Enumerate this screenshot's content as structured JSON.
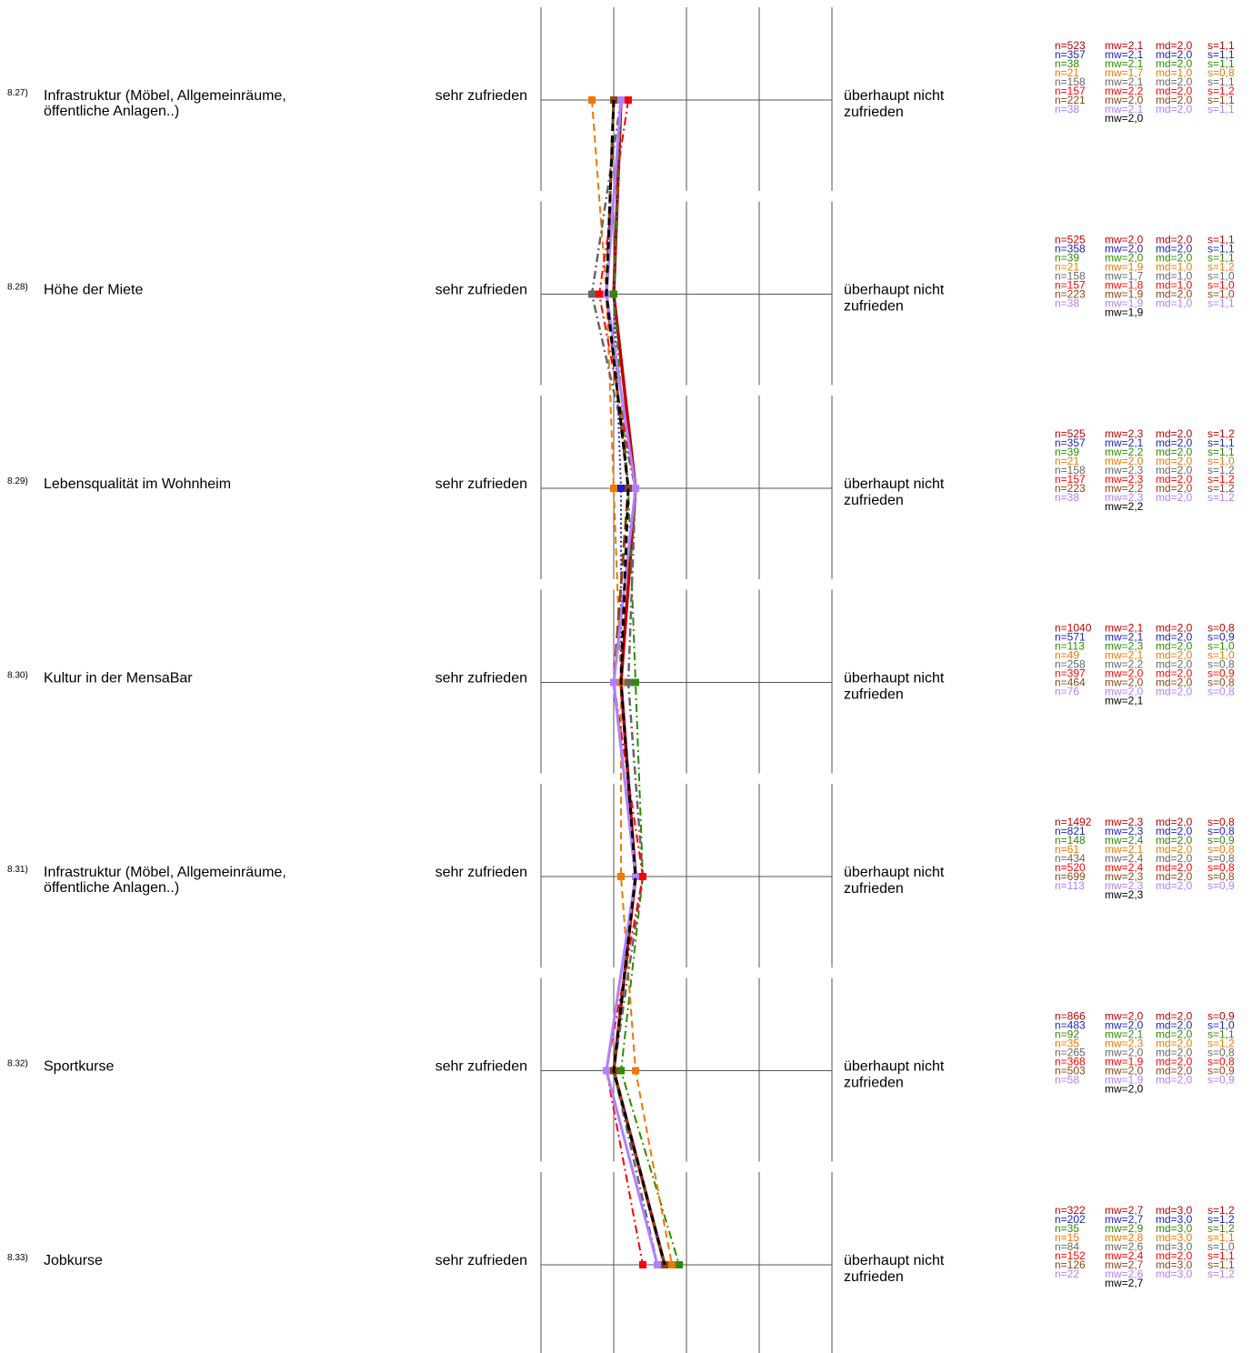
{
  "chart_data": {
    "type": "line",
    "scale_points": 5,
    "left_pole": "sehr zufrieden",
    "right_pole": "überhaupt nicht zufrieden",
    "series": [
      {
        "group": 0,
        "color": "#c00000",
        "dash": "solid",
        "width": 3.5
      },
      {
        "group": 1,
        "color": "#2020c0",
        "dash": "dot",
        "width": 2
      },
      {
        "group": 2,
        "color": "#2e8b00",
        "dash": "dashdot",
        "width": 2
      },
      {
        "group": 3,
        "color": "#f07800",
        "dash": "dash",
        "width": 2
      },
      {
        "group": 4,
        "color": "#666666",
        "dash": "dashdot",
        "width": 2.5
      },
      {
        "group": 5,
        "color": "#ff0000",
        "dash": "dashdot",
        "width": 2
      },
      {
        "group": 6,
        "color": "#8b4513",
        "dash": "longdash",
        "width": 3
      },
      {
        "group": 7,
        "color": "#b080ff",
        "dash": "solid",
        "width": 3
      },
      {
        "group": 8,
        "color": "#000000",
        "dash": "dash",
        "width": 3
      }
    ],
    "items": [
      {
        "num": "8.27)",
        "label": [
          "Infrastruktur (Möbel, Allgemeinräume,",
          "öffentliche Anlagen..)"
        ],
        "means": [
          2.1,
          2.1,
          2.1,
          1.7,
          2.1,
          2.2,
          2.0,
          2.1,
          2.0
        ],
        "stats": [
          {
            "n": "n=523",
            "mw": "mw=2,1",
            "md": "md=2,0",
            "s": "s=1,1"
          },
          {
            "n": "n=357",
            "mw": "mw=2,1",
            "md": "md=2,0",
            "s": "s=1,1"
          },
          {
            "n": "n=38",
            "mw": "mw=2,1",
            "md": "md=2,0",
            "s": "s=1,1"
          },
          {
            "n": "n=21",
            "mw": "mw=1,7",
            "md": "md=1,0",
            "s": "s=0,8"
          },
          {
            "n": "n=158",
            "mw": "mw=2,1",
            "md": "md=2,0",
            "s": "s=1,1"
          },
          {
            "n": "n=157",
            "mw": "mw=2,2",
            "md": "md=2,0",
            "s": "s=1,2"
          },
          {
            "n": "n=221",
            "mw": "mw=2,0",
            "md": "md=2,0",
            "s": "s=1,1"
          },
          {
            "n": "n=38",
            "mw": "mw=2,1",
            "md": "md=2,0",
            "s": "s=1,1"
          }
        ],
        "overall": "mw=2,0"
      },
      {
        "num": "8.28)",
        "label": [
          "Höhe der Miete"
        ],
        "means": [
          2.0,
          2.0,
          2.0,
          1.9,
          1.7,
          1.8,
          1.9,
          1.9,
          1.9
        ],
        "stats": [
          {
            "n": "n=525",
            "mw": "mw=2,0",
            "md": "md=2,0",
            "s": "s=1,1"
          },
          {
            "n": "n=358",
            "mw": "mw=2,0",
            "md": "md=2,0",
            "s": "s=1,1"
          },
          {
            "n": "n=39",
            "mw": "mw=2,0",
            "md": "md=2,0",
            "s": "s=1,1"
          },
          {
            "n": "n=21",
            "mw": "mw=1,9",
            "md": "md=1,0",
            "s": "s=1,2"
          },
          {
            "n": "n=158",
            "mw": "mw=1,7",
            "md": "md=1,0",
            "s": "s=1,0"
          },
          {
            "n": "n=157",
            "mw": "mw=1,8",
            "md": "md=1,0",
            "s": "s=1,0"
          },
          {
            "n": "n=223",
            "mw": "mw=1,9",
            "md": "md=2,0",
            "s": "s=1,0"
          },
          {
            "n": "n=38",
            "mw": "mw=1,9",
            "md": "md=1,0",
            "s": "s=1,1"
          }
        ],
        "overall": "mw=1,9"
      },
      {
        "num": "8.29)",
        "label": [
          "Lebensqualität im Wohnheim"
        ],
        "means": [
          2.3,
          2.1,
          2.2,
          2.0,
          2.3,
          2.3,
          2.2,
          2.3,
          2.2
        ],
        "stats": [
          {
            "n": "n=525",
            "mw": "mw=2,3",
            "md": "md=2,0",
            "s": "s=1,2"
          },
          {
            "n": "n=357",
            "mw": "mw=2,1",
            "md": "md=2,0",
            "s": "s=1,1"
          },
          {
            "n": "n=39",
            "mw": "mw=2,2",
            "md": "md=2,0",
            "s": "s=1,1"
          },
          {
            "n": "n=21",
            "mw": "mw=2,0",
            "md": "md=2,0",
            "s": "s=1,0"
          },
          {
            "n": "n=158",
            "mw": "mw=2,3",
            "md": "md=2,0",
            "s": "s=1,2"
          },
          {
            "n": "n=157",
            "mw": "mw=2,3",
            "md": "md=2,0",
            "s": "s=1,2"
          },
          {
            "n": "n=223",
            "mw": "mw=2,2",
            "md": "md=2,0",
            "s": "s=1,2"
          },
          {
            "n": "n=38",
            "mw": "mw=2,3",
            "md": "md=2,0",
            "s": "s=1,2"
          }
        ],
        "overall": "mw=2,2"
      },
      {
        "num": "8.30)",
        "label": [
          "Kultur in der MensaBar"
        ],
        "means": [
          2.1,
          2.1,
          2.3,
          2.1,
          2.2,
          2.0,
          2.0,
          2.0,
          2.1
        ],
        "stats": [
          {
            "n": "n=1040",
            "mw": "mw=2,1",
            "md": "md=2,0",
            "s": "s=0,8"
          },
          {
            "n": "n=571",
            "mw": "mw=2,1",
            "md": "md=2,0",
            "s": "s=0,9"
          },
          {
            "n": "n=113",
            "mw": "mw=2,3",
            "md": "md=2,0",
            "s": "s=1,0"
          },
          {
            "n": "n=49",
            "mw": "mw=2,1",
            "md": "md=2,0",
            "s": "s=1,0"
          },
          {
            "n": "n=258",
            "mw": "mw=2,2",
            "md": "md=2,0",
            "s": "s=0,8"
          },
          {
            "n": "n=397",
            "mw": "mw=2,0",
            "md": "md=2,0",
            "s": "s=0,9"
          },
          {
            "n": "n=464",
            "mw": "mw=2,0",
            "md": "md=2,0",
            "s": "s=0,8"
          },
          {
            "n": "n=76",
            "mw": "mw=2,0",
            "md": "md=2,0",
            "s": "s=0,8"
          }
        ],
        "overall": "mw=2,1"
      },
      {
        "num": "8.31)",
        "label": [
          "Infrastruktur (Möbel, Allgemeinräume,",
          "öffentliche Anlagen..)"
        ],
        "means": [
          2.3,
          2.3,
          2.4,
          2.1,
          2.4,
          2.4,
          2.3,
          2.3,
          2.3
        ],
        "stats": [
          {
            "n": "n=1492",
            "mw": "mw=2,3",
            "md": "md=2,0",
            "s": "s=0,8"
          },
          {
            "n": "n=821",
            "mw": "mw=2,3",
            "md": "md=2,0",
            "s": "s=0,8"
          },
          {
            "n": "n=148",
            "mw": "mw=2,4",
            "md": "md=2,0",
            "s": "s=0,9"
          },
          {
            "n": "n=61",
            "mw": "mw=2,1",
            "md": "md=2,0",
            "s": "s=0,8"
          },
          {
            "n": "n=434",
            "mw": "mw=2,4",
            "md": "md=2,0",
            "s": "s=0,8"
          },
          {
            "n": "n=520",
            "mw": "mw=2,4",
            "md": "md=2,0",
            "s": "s=0,8"
          },
          {
            "n": "n=699",
            "mw": "mw=2,3",
            "md": "md=2,0",
            "s": "s=0,8"
          },
          {
            "n": "n=113",
            "mw": "mw=2,3",
            "md": "md=2,0",
            "s": "s=0,9"
          }
        ],
        "overall": "mw=2,3"
      },
      {
        "num": "8.32)",
        "label": [
          "Sportkurse"
        ],
        "means": [
          2.0,
          2.0,
          2.1,
          2.3,
          2.0,
          1.9,
          2.0,
          1.9,
          2.0
        ],
        "stats": [
          {
            "n": "n=866",
            "mw": "mw=2,0",
            "md": "md=2,0",
            "s": "s=0,9"
          },
          {
            "n": "n=483",
            "mw": "mw=2,0",
            "md": "md=2,0",
            "s": "s=1,0"
          },
          {
            "n": "n=92",
            "mw": "mw=2,1",
            "md": "md=2,0",
            "s": "s=1,1"
          },
          {
            "n": "n=35",
            "mw": "mw=2,3",
            "md": "md=2,0",
            "s": "s=1,2"
          },
          {
            "n": "n=265",
            "mw": "mw=2,0",
            "md": "md=2,0",
            "s": "s=0,8"
          },
          {
            "n": "n=368",
            "mw": "mw=1,9",
            "md": "md=2,0",
            "s": "s=0,8"
          },
          {
            "n": "n=503",
            "mw": "mw=2,0",
            "md": "md=2,0",
            "s": "s=0,9"
          },
          {
            "n": "n=58",
            "mw": "mw=1,9",
            "md": "md=2,0",
            "s": "s=0,9"
          }
        ],
        "overall": "mw=2,0"
      },
      {
        "num": "8.33)",
        "label": [
          "Jobkurse"
        ],
        "means": [
          2.7,
          2.7,
          2.9,
          2.8,
          2.6,
          2.4,
          2.7,
          2.6,
          2.7
        ],
        "stats": [
          {
            "n": "n=322",
            "mw": "mw=2,7",
            "md": "md=3,0",
            "s": "s=1,2"
          },
          {
            "n": "n=202",
            "mw": "mw=2,7",
            "md": "md=3,0",
            "s": "s=1,2"
          },
          {
            "n": "n=35",
            "mw": "mw=2,9",
            "md": "md=3,0",
            "s": "s=1,2"
          },
          {
            "n": "n=15",
            "mw": "mw=2,8",
            "md": "md=3,0",
            "s": "s=1,1"
          },
          {
            "n": "n=84",
            "mw": "mw=2,6",
            "md": "md=3,0",
            "s": "s=1,0"
          },
          {
            "n": "n=152",
            "mw": "mw=2,4",
            "md": "md=2,0",
            "s": "s=1,1"
          },
          {
            "n": "n=126",
            "mw": "mw=2,7",
            "md": "md=3,0",
            "s": "s=1,1"
          },
          {
            "n": "n=22",
            "mw": "mw=2,6",
            "md": "md=3,0",
            "s": "s=1,2"
          }
        ],
        "overall": "mw=2,7"
      }
    ]
  }
}
